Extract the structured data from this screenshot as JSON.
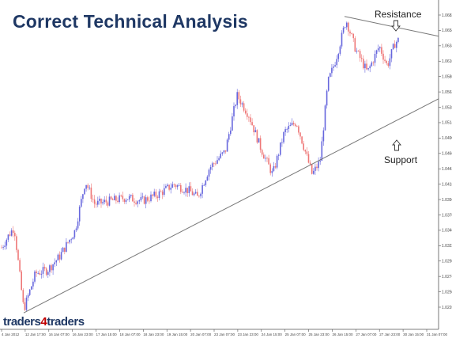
{
  "title": "Correct Technical Analysis",
  "logo": {
    "part1": "traders",
    "part2": "4",
    "part3": "traders"
  },
  "annotations": {
    "resistance": "Resistance",
    "support": "Support"
  },
  "colors": {
    "bull": "#6666dd",
    "bear": "#ee7777",
    "line": "#777777",
    "title": "#1f3864"
  },
  "chart_data": {
    "type": "candlestick",
    "grid": false,
    "ylim": [
      1.02,
      1.07
    ],
    "y_ticks": [
      "1.0682",
      "1.0658",
      "1.0634",
      "1.0610",
      "1.0586",
      "1.0562",
      "1.0538",
      "1.0514",
      "1.0490",
      "1.0466",
      "1.0442",
      "1.0418",
      "1.0394",
      "1.0370",
      "1.0346",
      "1.0322",
      "1.0298",
      "1.0274",
      "1.0250",
      "1.0226"
    ],
    "x_ticks": [
      "4 Jan 2012",
      "12 Jan 17:00",
      "16 Jan 07:00",
      "16 Jan 23:00",
      "17 Jan 15:00",
      "18 Jan 07:00",
      "18 Jan 23:00",
      "19 Jan 15:00",
      "20 Jan 07:00",
      "23 Jan 07:00",
      "23 Jan 23:00",
      "24 Jan 15:00",
      "25 Jan 07:00",
      "25 Jan 23:00",
      "26 Jan 15:00",
      "27 Jan 07:00",
      "27 Jan 23:00",
      "30 Jan 15:00",
      "31 Jan 07:00"
    ],
    "price_path": [
      [
        0,
        1.032
      ],
      [
        12,
        1.0345
      ],
      [
        18,
        1.0355
      ],
      [
        30,
        1.023
      ],
      [
        45,
        1.0285
      ],
      [
        60,
        1.029
      ],
      [
        75,
        1.031
      ],
      [
        95,
        1.035
      ],
      [
        108,
        1.0425
      ],
      [
        120,
        1.039
      ],
      [
        140,
        1.0395
      ],
      [
        160,
        1.04
      ],
      [
        180,
        1.0395
      ],
      [
        200,
        1.0405
      ],
      [
        220,
        1.042
      ],
      [
        240,
        1.041
      ],
      [
        250,
        1.04
      ],
      [
        265,
        1.0445
      ],
      [
        285,
        1.047
      ],
      [
        300,
        1.0555
      ],
      [
        315,
        1.0525
      ],
      [
        330,
        1.0475
      ],
      [
        345,
        1.0435
      ],
      [
        360,
        1.05
      ],
      [
        375,
        1.0515
      ],
      [
        385,
        1.0475
      ],
      [
        395,
        1.0435
      ],
      [
        405,
        1.0455
      ],
      [
        415,
        1.0575
      ],
      [
        425,
        1.061
      ],
      [
        438,
        1.067
      ],
      [
        450,
        1.0625
      ],
      [
        465,
        1.059
      ],
      [
        480,
        1.063
      ],
      [
        490,
        1.06
      ],
      [
        500,
        1.0635
      ],
      [
        505,
        1.064
      ]
    ],
    "resistance_line": {
      "from": [
        436,
        1.0675
      ],
      "to": [
        555,
        1.0645
      ]
    },
    "support_line": {
      "from": [
        30,
        1.0225
      ],
      "to": [
        555,
        1.055
      ]
    }
  }
}
